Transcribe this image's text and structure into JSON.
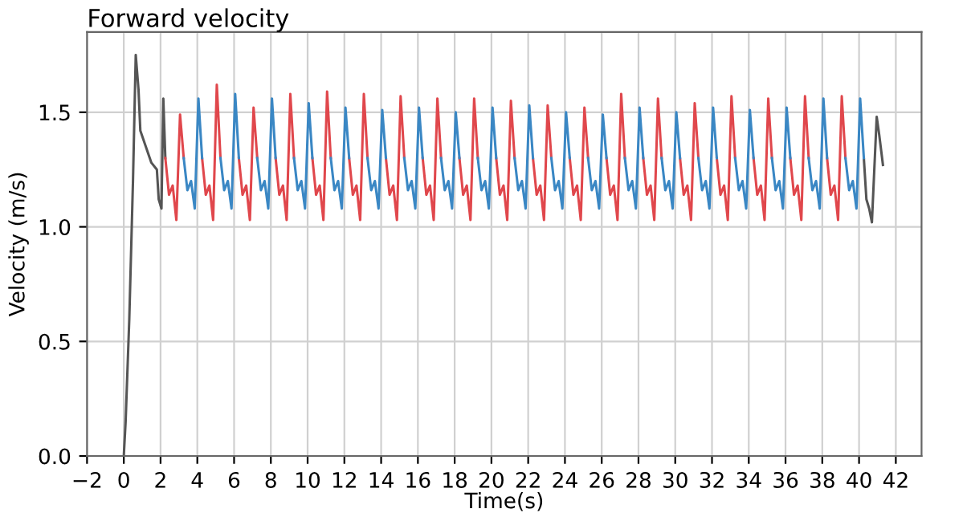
{
  "chart_data": {
    "type": "line",
    "title": "Forward velocity",
    "xlabel": "Time(s)",
    "ylabel": "Velocity (m/s)",
    "xlim": [
      -2,
      43.4
    ],
    "ylim": [
      0,
      1.85
    ],
    "xticks": [
      {
        "value": -2,
        "label": "−2"
      },
      0,
      2,
      4,
      6,
      8,
      10,
      12,
      14,
      16,
      18,
      20,
      22,
      24,
      26,
      28,
      30,
      32,
      34,
      36,
      38,
      40,
      42
    ],
    "yticks": [
      {
        "value": 0,
        "label": "0.0"
      },
      0.5,
      {
        "value": 1,
        "label": "1.0"
      },
      1.5
    ],
    "grid": true,
    "line_style": "solid",
    "series": [
      {
        "color": "#555555",
        "x": [
          0,
          0.1,
          0.3,
          0.5,
          0.65,
          0.8,
          0.9,
          1.2,
          1.5,
          1.8,
          1.9,
          2.05,
          2.15,
          2.26,
          2.27,
          40.26,
          40.4,
          40.55,
          40.7,
          40.96,
          41.1,
          41.3
        ],
        "values": [
          0,
          0.15,
          0.6,
          1.2,
          1.75,
          1.6,
          1.42,
          1.35,
          1.28,
          1.25,
          1.12,
          1.08,
          1.56,
          1.3,
          null,
          1.3,
          1.12,
          1.08,
          1.02,
          1.48,
          1.4,
          1.27
        ]
      },
      {
        "color": "#e0474c",
        "x": [
          2.26,
          2.46,
          2.66,
          2.86,
          3.06,
          3.26,
          3.27,
          4.26,
          4.46,
          4.66,
          4.86,
          5.06,
          5.26,
          5.27,
          6.26,
          6.46,
          6.66,
          6.86,
          7.06,
          7.26,
          7.27,
          8.26,
          8.46,
          8.66,
          8.86,
          9.06,
          9.26,
          9.27,
          10.26,
          10.46,
          10.66,
          10.86,
          11.06,
          11.26,
          11.27,
          12.26,
          12.46,
          12.66,
          12.86,
          13.06,
          13.26,
          13.27,
          14.26,
          14.46,
          14.66,
          14.86,
          15.06,
          15.26,
          15.27,
          16.26,
          16.46,
          16.66,
          16.86,
          17.06,
          17.26,
          17.27,
          18.26,
          18.46,
          18.66,
          18.86,
          19.06,
          19.26,
          19.27,
          20.26,
          20.46,
          20.66,
          20.86,
          21.06,
          21.26,
          21.27,
          22.26,
          22.46,
          22.66,
          22.86,
          23.06,
          23.26,
          23.27,
          24.26,
          24.46,
          24.66,
          24.86,
          25.06,
          25.26,
          25.27,
          26.26,
          26.46,
          26.66,
          26.86,
          27.06,
          27.26,
          27.27,
          28.26,
          28.46,
          28.66,
          28.86,
          29.06,
          29.26,
          29.27,
          30.26,
          30.46,
          30.66,
          30.86,
          31.06,
          31.26,
          31.27,
          32.26,
          32.46,
          32.66,
          32.86,
          33.06,
          33.26,
          33.27,
          34.26,
          34.46,
          34.66,
          34.86,
          35.06,
          35.26,
          35.27,
          36.26,
          36.46,
          36.66,
          36.86,
          37.06,
          37.26,
          37.27,
          38.26,
          38.46,
          38.66,
          38.86,
          39.06,
          39.26
        ],
        "values": [
          1.3,
          1.14,
          1.18,
          1.03,
          1.49,
          1.3,
          null,
          1.3,
          1.14,
          1.18,
          1.03,
          1.62,
          1.3,
          null,
          1.3,
          1.14,
          1.18,
          1.03,
          1.52,
          1.3,
          null,
          1.3,
          1.14,
          1.18,
          1.03,
          1.58,
          1.3,
          null,
          1.3,
          1.14,
          1.18,
          1.03,
          1.59,
          1.3,
          null,
          1.3,
          1.14,
          1.18,
          1.03,
          1.58,
          1.3,
          null,
          1.3,
          1.14,
          1.18,
          1.03,
          1.57,
          1.3,
          null,
          1.3,
          1.14,
          1.18,
          1.03,
          1.56,
          1.3,
          null,
          1.3,
          1.14,
          1.18,
          1.03,
          1.56,
          1.3,
          null,
          1.3,
          1.14,
          1.18,
          1.03,
          1.55,
          1.3,
          null,
          1.3,
          1.14,
          1.18,
          1.03,
          1.53,
          1.3,
          null,
          1.3,
          1.14,
          1.18,
          1.03,
          1.52,
          1.3,
          null,
          1.3,
          1.14,
          1.18,
          1.03,
          1.58,
          1.3,
          null,
          1.3,
          1.14,
          1.18,
          1.03,
          1.56,
          1.3,
          null,
          1.3,
          1.14,
          1.18,
          1.03,
          1.54,
          1.3,
          null,
          1.3,
          1.14,
          1.18,
          1.03,
          1.57,
          1.3,
          null,
          1.3,
          1.14,
          1.18,
          1.03,
          1.56,
          1.3,
          null,
          1.3,
          1.14,
          1.18,
          1.03,
          1.57,
          1.3,
          null,
          1.3,
          1.14,
          1.18,
          1.03,
          1.57,
          1.3
        ]
      },
      {
        "color": "#3a87c4",
        "x": [
          3.26,
          3.46,
          3.66,
          3.86,
          4.06,
          4.26,
          4.27,
          5.26,
          5.46,
          5.66,
          5.86,
          6.06,
          6.26,
          6.27,
          7.26,
          7.46,
          7.66,
          7.86,
          8.06,
          8.26,
          8.27,
          9.26,
          9.46,
          9.66,
          9.86,
          10.06,
          10.26,
          10.27,
          11.26,
          11.46,
          11.66,
          11.86,
          12.06,
          12.26,
          12.27,
          13.26,
          13.46,
          13.66,
          13.86,
          14.06,
          14.26,
          14.27,
          15.26,
          15.46,
          15.66,
          15.86,
          16.06,
          16.26,
          16.27,
          17.26,
          17.46,
          17.66,
          17.86,
          18.06,
          18.26,
          18.27,
          19.26,
          19.46,
          19.66,
          19.86,
          20.06,
          20.26,
          20.27,
          21.26,
          21.46,
          21.66,
          21.86,
          22.06,
          22.26,
          22.27,
          23.26,
          23.46,
          23.66,
          23.86,
          24.06,
          24.26,
          24.27,
          25.26,
          25.46,
          25.66,
          25.86,
          26.06,
          26.26,
          26.27,
          27.26,
          27.46,
          27.66,
          27.86,
          28.06,
          28.26,
          28.27,
          29.26,
          29.46,
          29.66,
          29.86,
          30.06,
          30.26,
          30.27,
          31.26,
          31.46,
          31.66,
          31.86,
          32.06,
          32.26,
          32.27,
          33.26,
          33.46,
          33.66,
          33.86,
          34.06,
          34.26,
          34.27,
          35.26,
          35.46,
          35.66,
          35.86,
          36.06,
          36.26,
          36.27,
          37.26,
          37.46,
          37.66,
          37.86,
          38.06,
          38.26,
          38.27,
          39.26,
          39.46,
          39.66,
          39.86,
          40.06,
          40.26
        ],
        "values": [
          1.3,
          1.16,
          1.2,
          1.08,
          1.56,
          1.3,
          null,
          1.3,
          1.16,
          1.2,
          1.08,
          1.58,
          1.3,
          null,
          1.3,
          1.16,
          1.2,
          1.08,
          1.56,
          1.3,
          null,
          1.3,
          1.16,
          1.2,
          1.08,
          1.54,
          1.3,
          null,
          1.3,
          1.16,
          1.2,
          1.08,
          1.52,
          1.3,
          null,
          1.3,
          1.16,
          1.2,
          1.08,
          1.51,
          1.3,
          null,
          1.3,
          1.16,
          1.2,
          1.08,
          1.52,
          1.3,
          null,
          1.3,
          1.16,
          1.2,
          1.08,
          1.5,
          1.3,
          null,
          1.3,
          1.16,
          1.2,
          1.08,
          1.52,
          1.3,
          null,
          1.3,
          1.16,
          1.2,
          1.08,
          1.53,
          1.3,
          null,
          1.3,
          1.16,
          1.2,
          1.08,
          1.5,
          1.3,
          null,
          1.3,
          1.16,
          1.2,
          1.08,
          1.49,
          1.3,
          null,
          1.3,
          1.16,
          1.2,
          1.08,
          1.52,
          1.3,
          null,
          1.3,
          1.16,
          1.2,
          1.08,
          1.5,
          1.3,
          null,
          1.3,
          1.16,
          1.2,
          1.08,
          1.52,
          1.3,
          null,
          1.3,
          1.16,
          1.2,
          1.08,
          1.51,
          1.3,
          null,
          1.3,
          1.16,
          1.2,
          1.08,
          1.52,
          1.3,
          null,
          1.3,
          1.16,
          1.2,
          1.08,
          1.56,
          1.3,
          null,
          1.3,
          1.16,
          1.2,
          1.08,
          1.56,
          1.3
        ]
      }
    ]
  }
}
